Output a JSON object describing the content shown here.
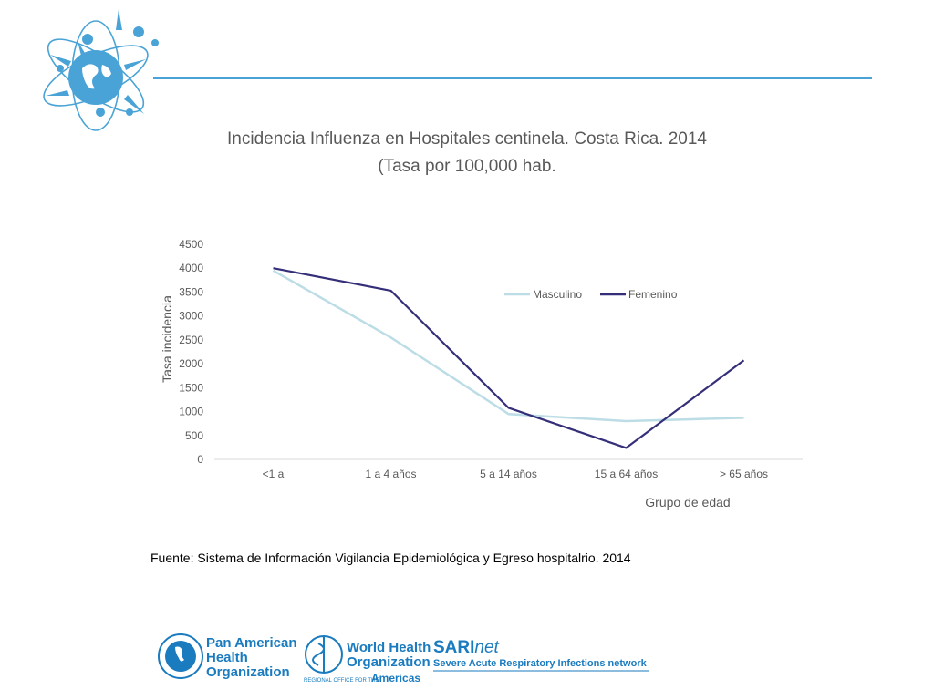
{
  "chart_data": {
    "type": "line",
    "title": "Incidencia Influenza  en Hospitales centinela. Costa Rica. 2014",
    "subtitle": "(Tasa por 100,000 hab.",
    "xlabel": "Grupo de edad",
    "ylabel": "Tasa incidencia",
    "categories": [
      "<1 a",
      "1 a 4 años",
      "5 a 14 años",
      "15 a 64 años",
      "> 65 años"
    ],
    "ylim": [
      0,
      4500
    ],
    "yticks": [
      0,
      500,
      1000,
      1500,
      2000,
      2500,
      3000,
      3500,
      4000,
      4500
    ],
    "grid": false,
    "legend_position": "top-right",
    "series": [
      {
        "name": "Masculino",
        "color": "#bcdde6",
        "values": [
          3950,
          2550,
          950,
          800,
          870
        ]
      },
      {
        "name": "Femenino",
        "color": "#352f7a",
        "values": [
          4000,
          3530,
          1080,
          240,
          2070
        ]
      }
    ]
  },
  "source_note": "Fuente: Sistema de Información  Vigilancia Epidemiológica y Egreso hospitalrio. 2014",
  "footer": {
    "paho": [
      "Pan American",
      "Health",
      "Organization"
    ],
    "who": [
      "World Health",
      "Organization"
    ],
    "who_region": "REGIONAL OFFICE FOR THE",
    "who_americas": "Americas",
    "sari_bold": "SARI",
    "sari_italic": "net",
    "sari_sub": "Severe Acute Respiratory Infections network"
  },
  "colors": {
    "accent": "#4aa3d6",
    "logo": "#1a7bbf"
  },
  "icons": {
    "header": "globe-virus-logo-icon"
  }
}
